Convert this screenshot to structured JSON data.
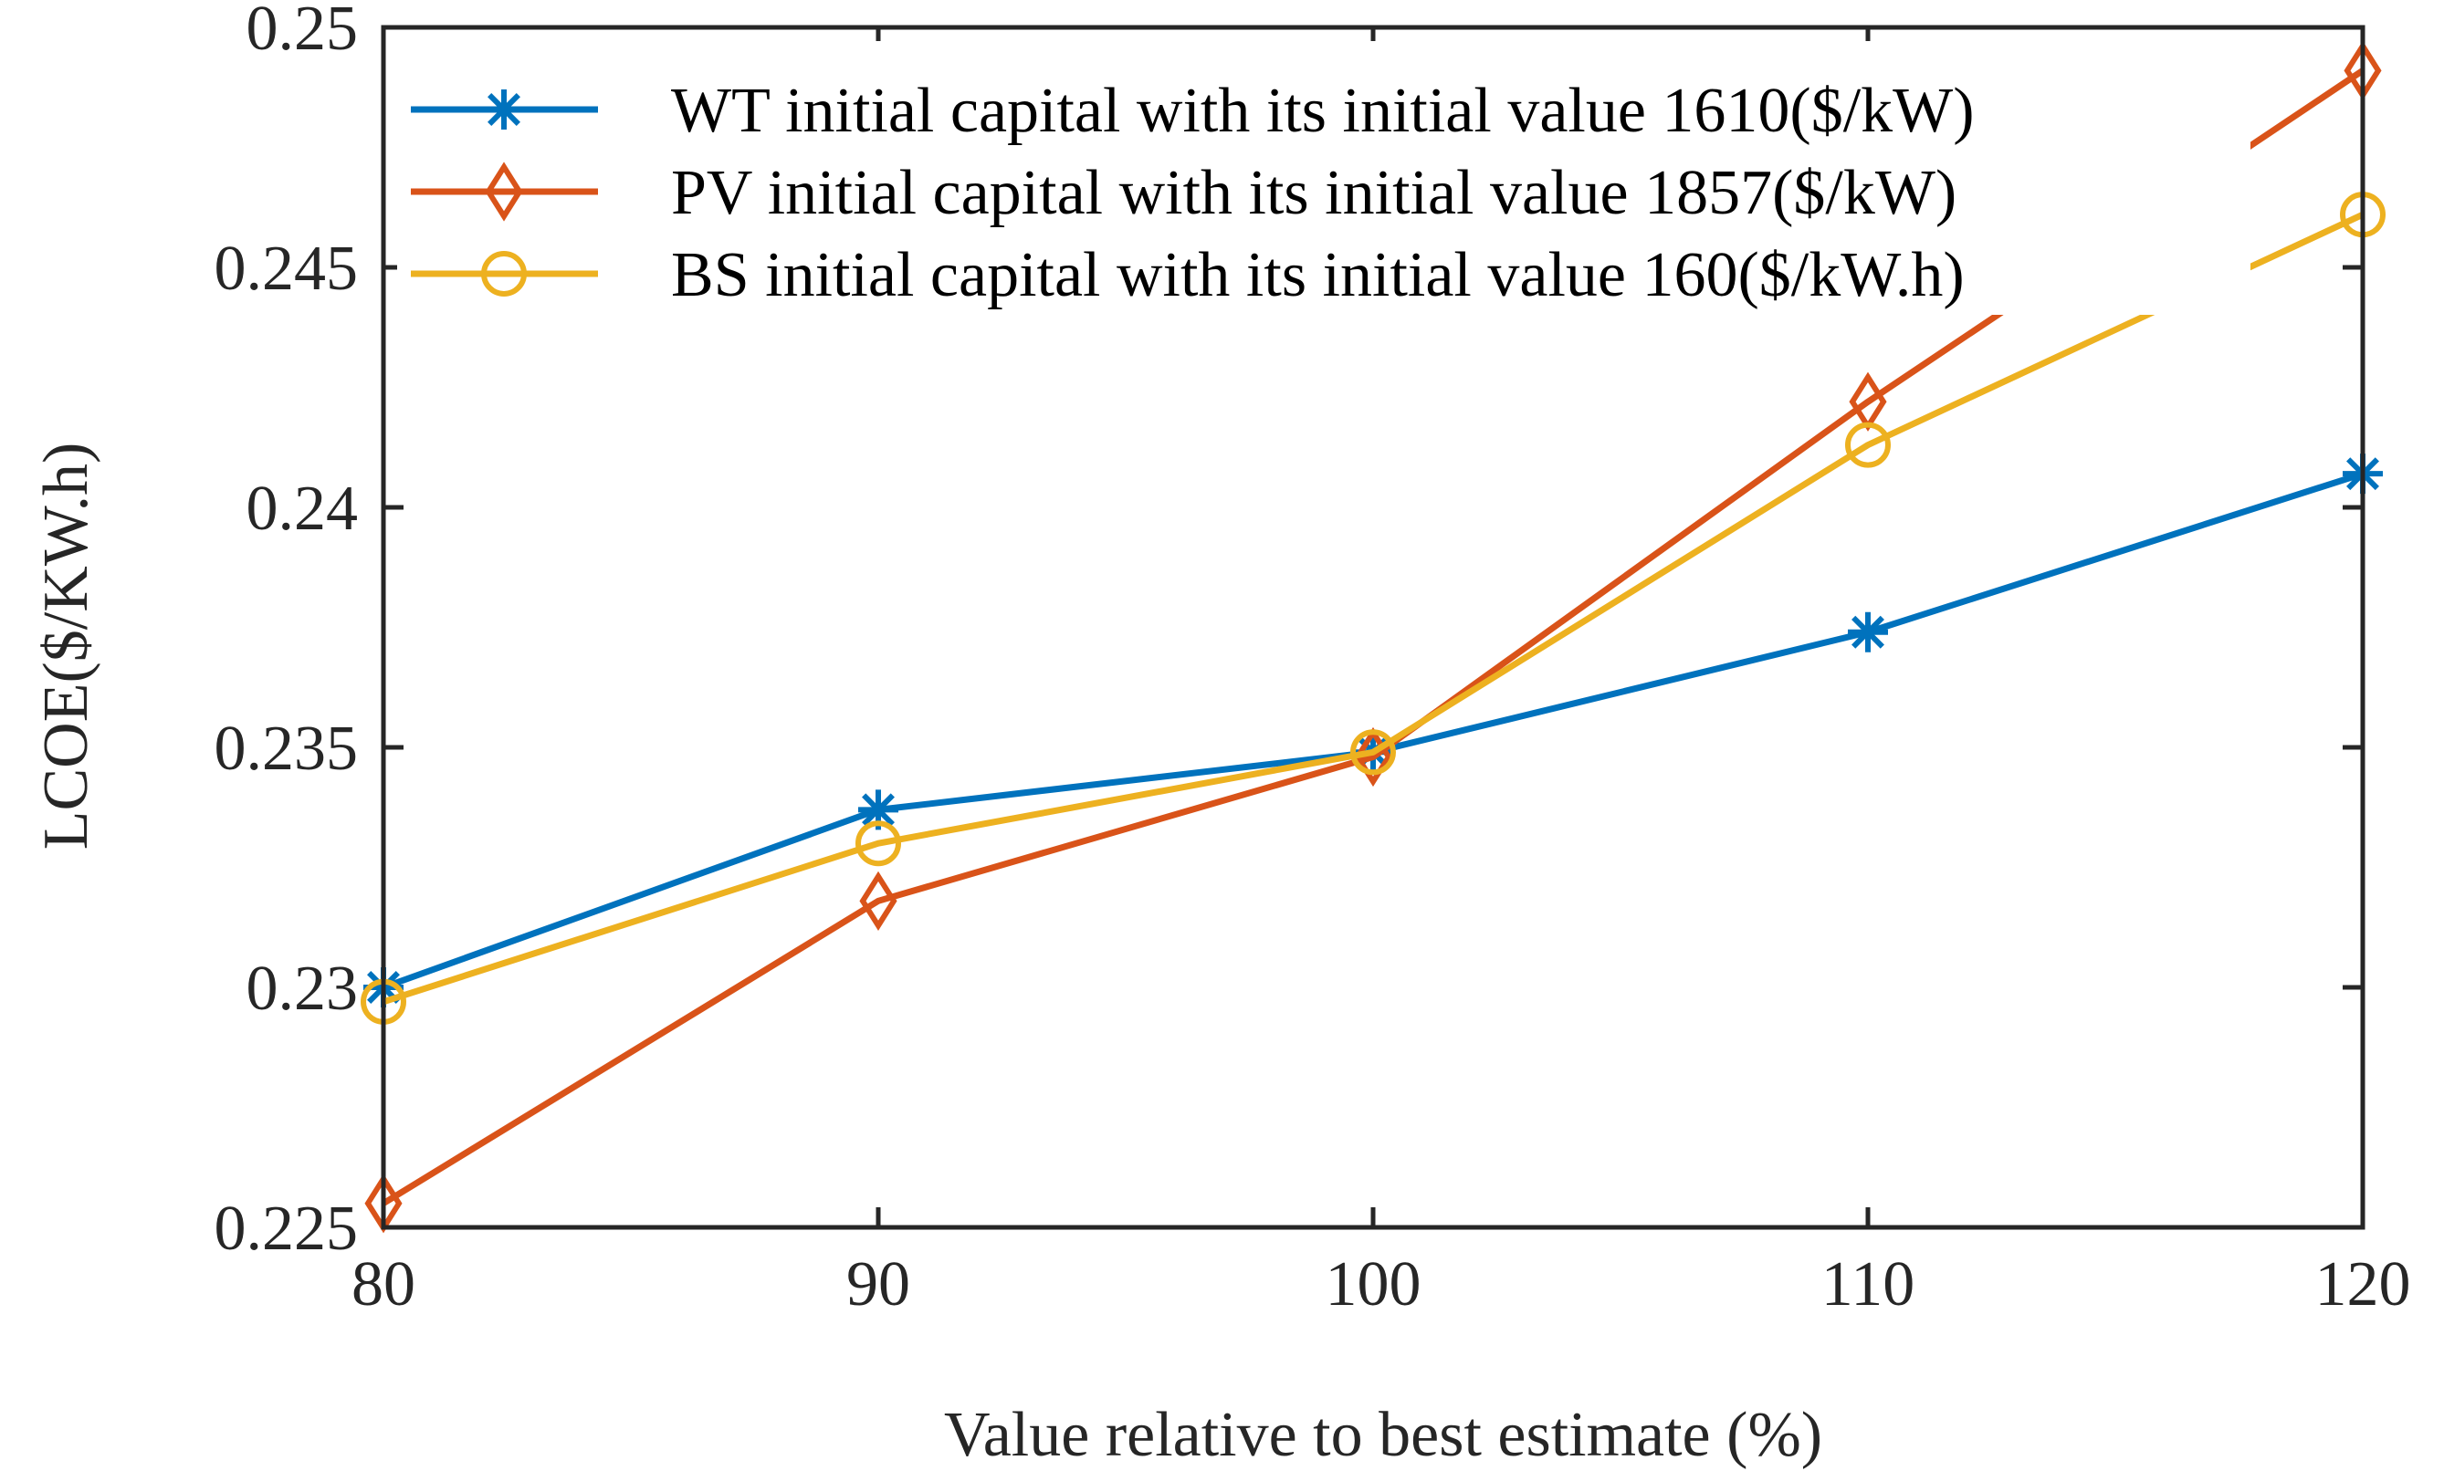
{
  "chart_data": {
    "type": "line",
    "title": "",
    "xlabel": "Value relative to best estimate (%)",
    "ylabel": "LCOE($/KW.h)",
    "x": [
      80,
      90,
      100,
      110,
      120
    ],
    "xlim": [
      80,
      120
    ],
    "ylim": [
      0.225,
      0.25
    ],
    "xticks": [
      80,
      90,
      100,
      110,
      120
    ],
    "xtick_labels": [
      "80",
      "90",
      "100",
      "110",
      "120"
    ],
    "yticks": [
      0.225,
      0.23,
      0.235,
      0.24,
      0.245,
      0.25
    ],
    "ytick_labels": [
      "0.225",
      "0.23",
      "0.235",
      "0.24",
      "0.245",
      "0.25"
    ],
    "grid": false,
    "legend_position": "top",
    "series": [
      {
        "name": "WT initial capital with its initial value 1610($/kW)",
        "color": "#0072BD",
        "marker": "asterisk",
        "values": [
          0.23,
          0.2337,
          0.2349,
          0.2374,
          0.2407
        ]
      },
      {
        "name": "PV initial capital with its initial value 1857($/kW)",
        "color": "#D95319",
        "marker": "diamond",
        "values": [
          0.2255,
          0.2318,
          0.2348,
          0.2422,
          0.2491
        ]
      },
      {
        "name": "BS initial capital with its initial value 160($/kW.h)",
        "color": "#EDB120",
        "marker": "circle",
        "values": [
          0.2297,
          0.233,
          0.2349,
          0.2413,
          0.2461
        ]
      }
    ]
  }
}
